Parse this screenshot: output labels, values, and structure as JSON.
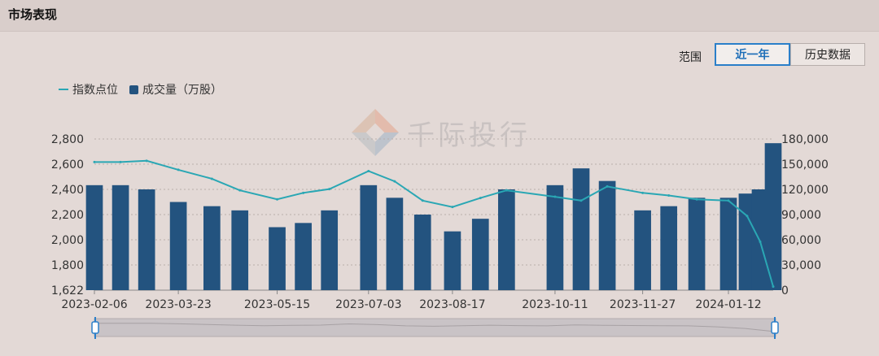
{
  "header": {
    "title": "市场表现"
  },
  "range": {
    "label": "范围",
    "buttons": [
      {
        "label": "近一年",
        "active": true
      },
      {
        "label": "历史数据",
        "active": false
      }
    ]
  },
  "watermark": {
    "text": "千际投行"
  },
  "colors": {
    "line": "#2aa7b4",
    "bar": "#23537f",
    "active": "#2a7fc9"
  },
  "chart_data": {
    "type": "bar",
    "legend": [
      "指数点位",
      "成交量（万股）"
    ],
    "x_ticks": [
      "2023-02-06",
      "2023-03-23",
      "2023-05-15",
      "2023-07-03",
      "2023-08-17",
      "2023-10-11",
      "2023-11-27",
      "2024-01-12"
    ],
    "y_left_ticks": [
      "1,622",
      "1,800",
      "2,000",
      "2,200",
      "2,400",
      "2,600",
      "2,800"
    ],
    "y_right_ticks": [
      "0",
      "30,000",
      "60,000",
      "90,000",
      "120,000",
      "150,000",
      "180,000"
    ],
    "y_left_range": [
      1622,
      2800
    ],
    "y_right_range": [
      0,
      180000
    ],
    "grid": true,
    "series": [
      {
        "name": "指数点位",
        "type": "line",
        "x": [
          "2023-02-06",
          "2023-02-20",
          "2023-03-06",
          "2023-03-23",
          "2023-04-10",
          "2023-04-25",
          "2023-05-15",
          "2023-05-29",
          "2023-06-12",
          "2023-07-03",
          "2023-07-17",
          "2023-08-01",
          "2023-08-17",
          "2023-09-01",
          "2023-09-15",
          "2023-10-11",
          "2023-10-25",
          "2023-11-08",
          "2023-11-27",
          "2023-12-11",
          "2023-12-26",
          "2024-01-12",
          "2024-01-22",
          "2024-01-29",
          "2024-02-05"
        ],
        "values": [
          2620,
          2620,
          2630,
          2560,
          2490,
          2400,
          2330,
          2380,
          2410,
          2550,
          2470,
          2320,
          2270,
          2340,
          2400,
          2350,
          2320,
          2430,
          2380,
          2360,
          2330,
          2320,
          2200,
          2000,
          1650
        ]
      },
      {
        "name": "成交量（万股）",
        "type": "bar",
        "x": [
          "2023-02-06",
          "2023-02-20",
          "2023-03-06",
          "2023-03-23",
          "2023-04-10",
          "2023-04-25",
          "2023-05-15",
          "2023-05-29",
          "2023-06-12",
          "2023-07-03",
          "2023-07-17",
          "2023-08-01",
          "2023-08-17",
          "2023-09-01",
          "2023-09-15",
          "2023-10-11",
          "2023-10-25",
          "2023-11-08",
          "2023-11-27",
          "2023-12-11",
          "2023-12-26",
          "2024-01-12",
          "2024-01-22",
          "2024-01-29",
          "2024-02-05"
        ],
        "values": [
          125000,
          125000,
          120000,
          105000,
          100000,
          95000,
          75000,
          80000,
          95000,
          125000,
          110000,
          90000,
          70000,
          85000,
          120000,
          125000,
          145000,
          130000,
          95000,
          100000,
          110000,
          110000,
          115000,
          120000,
          175000
        ]
      }
    ]
  }
}
